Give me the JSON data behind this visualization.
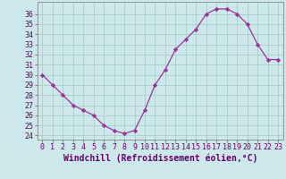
{
  "x": [
    0,
    1,
    2,
    3,
    4,
    5,
    6,
    7,
    8,
    9,
    10,
    11,
    12,
    13,
    14,
    15,
    16,
    17,
    18,
    19,
    20,
    21,
    22,
    23
  ],
  "y": [
    30,
    29,
    28,
    27,
    26.5,
    26,
    25,
    24.5,
    24.2,
    24.5,
    26.5,
    29,
    30.5,
    32.5,
    33.5,
    34.5,
    36,
    36.5,
    36.5,
    36,
    35,
    33,
    31.5,
    31.5
  ],
  "line_color": "#993399",
  "marker": "D",
  "marker_size": 2.2,
  "bg_color": "#cce8ea",
  "grid_color": "#aacccc",
  "xlabel": "Windchill (Refroidissement éolien,°C)",
  "ylabel_ticks": [
    24,
    25,
    26,
    27,
    28,
    29,
    30,
    31,
    32,
    33,
    34,
    35,
    36
  ],
  "ylim": [
    23.6,
    37.2
  ],
  "xlim": [
    -0.5,
    23.5
  ],
  "xlabel_fontsize": 7.0,
  "tick_fontsize": 6.0
}
